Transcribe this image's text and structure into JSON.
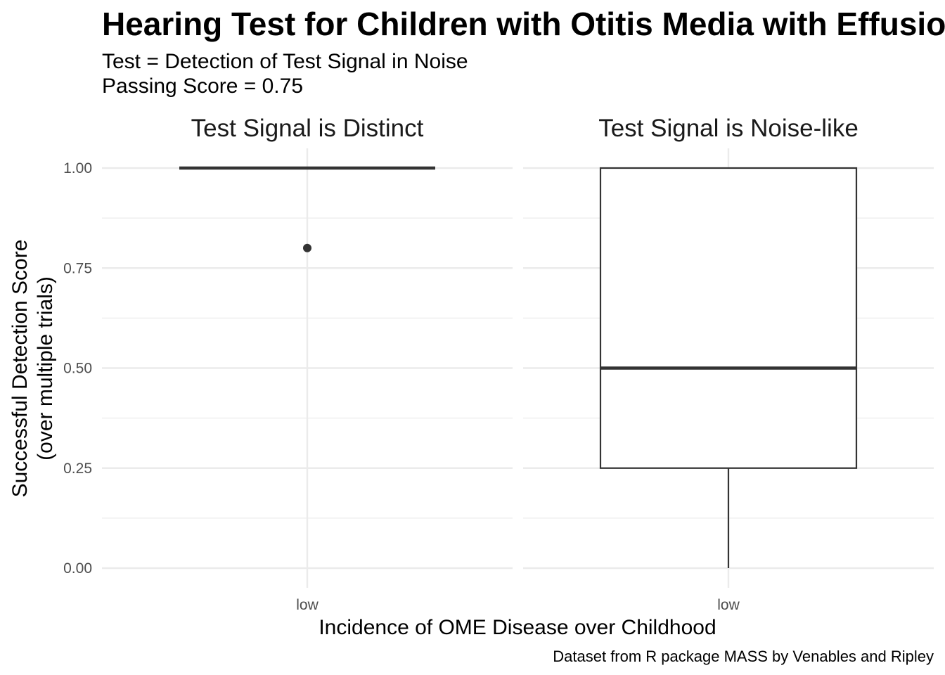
{
  "chart_data": {
    "type": "boxplot",
    "title": "Hearing Test for Children with Otitis Media with Effusion",
    "subtitle_lines": [
      "Test = Detection of Test Signal in Noise",
      "Passing Score = 0.75"
    ],
    "xlabel": "Incidence of OME Disease over Childhood",
    "ylabel_lines": [
      "Successful Detection Score",
      "(over multiple trials)"
    ],
    "caption": "Dataset from R package MASS by Venables and Ripley",
    "ylim": [
      0,
      1
    ],
    "y_ticks": [
      "0.00",
      "0.25",
      "0.50",
      "0.75",
      "1.00"
    ],
    "y_tick_values": [
      0,
      0.25,
      0.5,
      0.75,
      1.0
    ],
    "grid": true,
    "facets": [
      {
        "label": "Test Signal is Distinct",
        "categories": [
          "low"
        ],
        "boxes": [
          {
            "category": "low",
            "min": 1.0,
            "q1": 1.0,
            "median": 1.0,
            "q3": 1.0,
            "max": 1.0,
            "outliers": [
              0.8
            ]
          }
        ]
      },
      {
        "label": "Test Signal is Noise-like",
        "categories": [
          "low"
        ],
        "boxes": [
          {
            "category": "low",
            "min": 0.0,
            "q1": 0.25,
            "median": 0.5,
            "q3": 1.0,
            "max": 1.0,
            "outliers": []
          }
        ]
      }
    ]
  },
  "colors": {
    "box_stroke": "#333333",
    "grid": "#ebebeb",
    "tick_text": "#4d4d4d"
  }
}
